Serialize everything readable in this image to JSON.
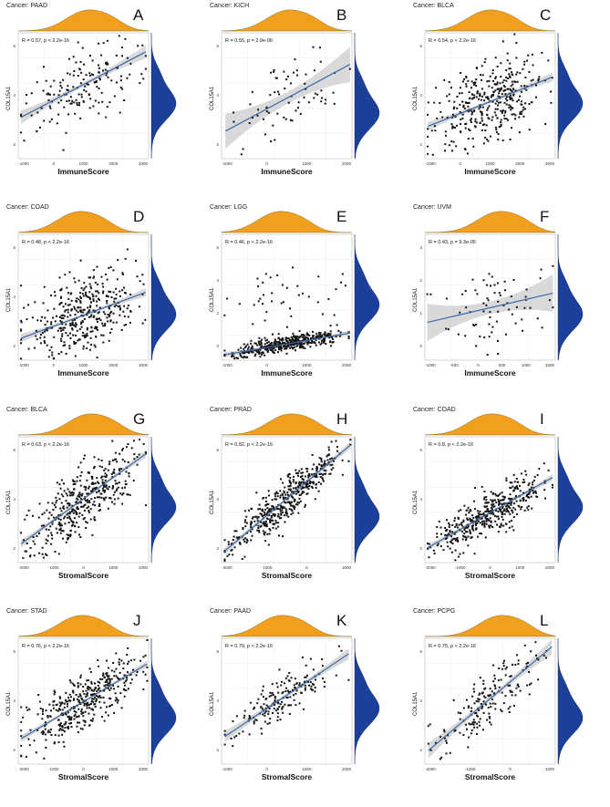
{
  "colors": {
    "top_density": "#f0a01e",
    "right_density": "#1c3f9a",
    "fit_line": "#3b6aa8",
    "ci_band": "#cfcfcf",
    "point": "#111111"
  },
  "chart_data": [
    {
      "id": "A",
      "type": "scatter",
      "title": "Cancer: PAAD",
      "xlabel": "ImmuneScore",
      "ylabel": "COL15A1",
      "stat": "R = 0.57, p < 2.2e-16",
      "x_ticks": [
        "-1000",
        "0",
        "1000",
        "2000",
        "3000"
      ],
      "xlim": [
        -1300,
        3300
      ],
      "ylim": [
        0.5,
        7.8
      ],
      "y_ticks": [
        "2",
        "4",
        "6"
      ],
      "fit": {
        "x": [
          -1200,
          3200
        ],
        "y": [
          2.9,
          6.7
        ]
      },
      "ci": 0.25,
      "n_points": 170,
      "noise": 1.05
    },
    {
      "id": "B",
      "type": "scatter",
      "title": "Cancer: KICH",
      "xlabel": "ImmuneScore",
      "ylabel": "COL15A1",
      "stat": "R = 0.55, p = 2.9e-06",
      "x_ticks": [
        "-1000",
        "0",
        "1000",
        "2000"
      ],
      "xlim": [
        -1300,
        2100
      ],
      "ylim": [
        0.0,
        6.4
      ],
      "y_ticks": [
        "2",
        "4",
        "6"
      ],
      "fit": {
        "x": [
          -1200,
          2050
        ],
        "y": [
          1.4,
          4.8
        ]
      },
      "ci": 0.6,
      "n_points": 70,
      "noise": 1.0
    },
    {
      "id": "C",
      "type": "scatter",
      "title": "Cancer: BLCA",
      "xlabel": "ImmuneScore",
      "ylabel": "COL15A1",
      "stat": "R = 0.54, p < 2.2e-16",
      "x_ticks": [
        "-1000",
        "0",
        "1000",
        "2000",
        "3000"
      ],
      "xlim": [
        -1300,
        3300
      ],
      "ylim": [
        0.0,
        7.4
      ],
      "y_ticks": [
        "2",
        "4",
        "6"
      ],
      "fit": {
        "x": [
          -1200,
          3200
        ],
        "y": [
          1.9,
          4.8
        ]
      },
      "ci": 0.18,
      "n_points": 380,
      "noise": 1.15
    },
    {
      "id": "D",
      "type": "scatter",
      "title": "Cancer: COAD",
      "xlabel": "ImmuneScore",
      "ylabel": "COL15A1",
      "stat": "R = 0.48, p < 2.2e-16",
      "x_ticks": [
        "-1000",
        "0",
        "1000",
        "2000",
        "3000"
      ],
      "xlim": [
        -1300,
        3300
      ],
      "ylim": [
        0.0,
        6.3
      ],
      "y_ticks": [
        "2",
        "4",
        "6"
      ],
      "fit": {
        "x": [
          -1200,
          3200
        ],
        "y": [
          1.1,
          3.4
        ]
      },
      "ci": 0.14,
      "n_points": 400,
      "noise": 0.95
    },
    {
      "id": "E",
      "type": "scatter",
      "title": "Cancer: LGG",
      "xlabel": "ImmuneScore",
      "ylabel": "COL15A1",
      "stat": "R = 0.46, p < 2.2e-16",
      "x_ticks": [
        "-1000",
        "0",
        "1000",
        "2000"
      ],
      "xlim": [
        -1800,
        2400
      ],
      "ylim": [
        -0.2,
        6.8
      ],
      "y_ticks": [
        "0",
        "2",
        "4",
        "6"
      ],
      "fit": {
        "x": [
          -1700,
          2300
        ],
        "y": [
          0.1,
          1.3
        ]
      },
      "ci": 0.1,
      "n_points": 480,
      "noise": 0.4,
      "skew": true
    },
    {
      "id": "F",
      "type": "scatter",
      "title": "Cancer: UVM",
      "xlabel": "ImmuneScore",
      "ylabel": "COL15A1",
      "stat": "R = 0.43, p = 9.3e-05",
      "x_ticks": [
        "-1000",
        "-500",
        "0",
        "500",
        "1000",
        "1500"
      ],
      "xlim": [
        -1150,
        1650
      ],
      "ylim": [
        -0.3,
        4.2
      ],
      "y_ticks": [
        "0",
        "1",
        "2",
        "3"
      ],
      "fit": {
        "x": [
          -1100,
          1600
        ],
        "y": [
          1.05,
          2.1
        ]
      },
      "ci": 0.45,
      "n_points": 75,
      "noise": 0.75
    },
    {
      "id": "G",
      "type": "scatter",
      "title": "Cancer: BLCA",
      "xlabel": "StromalScore",
      "ylabel": "COL15A1",
      "stat": "R = 0.63, p < 2.2e-16",
      "x_ticks": [
        "-2000",
        "-1000",
        "0",
        "1000",
        "2000"
      ],
      "xlim": [
        -2500,
        2300
      ],
      "ylim": [
        0.0,
        7.4
      ],
      "y_ticks": [
        "2",
        "4",
        "6"
      ],
      "fit": {
        "x": [
          -2400,
          2200
        ],
        "y": [
          1.1,
          6.4
        ]
      },
      "ci": 0.15,
      "n_points": 400,
      "noise": 1.0
    },
    {
      "id": "H",
      "type": "scatter",
      "title": "Cancer: PRAD",
      "xlabel": "StromalScore",
      "ylabel": "COL15A1",
      "stat": "R = 0.82, p < 2.2e-16",
      "x_ticks": [
        "-2000",
        "-1000",
        "0",
        "1000"
      ],
      "xlim": [
        -2400,
        1700
      ],
      "ylim": [
        0.0,
        7.6
      ],
      "y_ticks": [
        "2",
        "4",
        "6"
      ],
      "fit": {
        "x": [
          -2300,
          1650
        ],
        "y": [
          0.7,
          7.1
        ]
      },
      "ci": 0.15,
      "n_points": 450,
      "noise": 0.65
    },
    {
      "id": "I",
      "type": "scatter",
      "title": "Cancer: COAD",
      "xlabel": "StromalScore",
      "ylabel": "COL15A1",
      "stat": "R = 0.8, p < 2.2e-16",
      "x_ticks": [
        "-2000",
        "-1000",
        "0",
        "1000",
        "2000"
      ],
      "xlim": [
        -2500,
        2300
      ],
      "ylim": [
        0.0,
        6.8
      ],
      "y_ticks": [
        "2",
        "4",
        "6"
      ],
      "fit": {
        "x": [
          -2400,
          2200
        ],
        "y": [
          0.8,
          4.6
        ]
      },
      "ci": 0.12,
      "n_points": 430,
      "noise": 0.6
    },
    {
      "id": "J",
      "type": "scatter",
      "title": "Cancer: STAD",
      "xlabel": "StromalScore",
      "ylabel": "COL15A1",
      "stat": "R = 0.76, p < 2.2e-16",
      "x_ticks": [
        "-2000",
        "-1000",
        "0",
        "1000",
        "2000"
      ],
      "xlim": [
        -2300,
        2200
      ],
      "ylim": [
        0.0,
        7.4
      ],
      "y_ticks": [
        "2",
        "4",
        "6"
      ],
      "fit": {
        "x": [
          -2200,
          2150
        ],
        "y": [
          1.5,
          5.9
        ]
      },
      "ci": 0.14,
      "n_points": 400,
      "noise": 0.8
    },
    {
      "id": "K",
      "type": "scatter",
      "title": "Cancer: PAAD",
      "xlabel": "StromalScore",
      "ylabel": "COL15A1",
      "stat": "R = 0.79, p < 2.2e-16",
      "x_ticks": [
        "-1000",
        "0",
        "1000",
        "2000"
      ],
      "xlim": [
        -1700,
        2300
      ],
      "ylim": [
        0.5,
        7.8
      ],
      "y_ticks": [
        "2",
        "4",
        "6"
      ],
      "fit": {
        "x": [
          -1600,
          2200
        ],
        "y": [
          2.1,
          6.9
        ]
      },
      "ci": 0.22,
      "n_points": 175,
      "noise": 0.65
    },
    {
      "id": "L",
      "type": "scatter",
      "title": "Cancer: PCPG",
      "xlabel": "StromalScore",
      "ylabel": "COL15A1",
      "stat": "R = 0.75, p < 2.2e-16",
      "x_ticks": [
        "-2000",
        "-1000",
        "0",
        "1000"
      ],
      "xlim": [
        -2300,
        1500
      ],
      "ylim": [
        0.0,
        7.4
      ],
      "y_ticks": [
        "2",
        "4",
        "6"
      ],
      "fit": {
        "x": [
          -2200,
          1400
        ],
        "y": [
          0.8,
          6.9
        ]
      },
      "ci": 0.3,
      "n_points": 180,
      "noise": 0.85
    }
  ]
}
